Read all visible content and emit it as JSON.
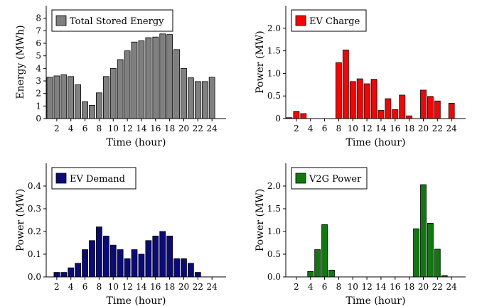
{
  "chart_data": [
    {
      "type": "bar",
      "legend": "Total Stored Energy",
      "color": "#808080",
      "xlabel": "Time (hour)",
      "ylabel": "Energy (MWh)",
      "ylim": [
        0,
        9
      ],
      "yticks": [
        0,
        1,
        2,
        3,
        4,
        5,
        6,
        7,
        8
      ],
      "x": [
        1,
        2,
        3,
        4,
        5,
        6,
        7,
        8,
        9,
        10,
        11,
        12,
        13,
        14,
        15,
        16,
        17,
        18,
        19,
        20,
        21,
        22,
        23,
        24
      ],
      "values": [
        3.3,
        3.4,
        3.5,
        3.35,
        2.7,
        1.35,
        1.05,
        2.05,
        3.35,
        4.0,
        4.7,
        5.4,
        6.1,
        6.2,
        6.45,
        6.5,
        6.75,
        6.7,
        5.5,
        4.0,
        3.25,
        2.95,
        2.95,
        3.3
      ]
    },
    {
      "type": "bar",
      "legend": "EV Charge",
      "color": "#ff0000",
      "xlabel": "Time (hour)",
      "ylabel": "Power (MW)",
      "ylim": [
        0,
        2.5
      ],
      "yticks": [
        "0",
        "0.5",
        "1.0",
        "1.5",
        "2.0"
      ],
      "x": [
        1,
        2,
        3,
        4,
        5,
        6,
        7,
        8,
        9,
        10,
        11,
        12,
        13,
        14,
        15,
        16,
        17,
        18,
        19,
        20,
        21,
        22,
        23,
        24
      ],
      "values": [
        0.02,
        0.16,
        0.11,
        0.0,
        0.0,
        0.0,
        0.0,
        1.24,
        1.52,
        0.82,
        0.88,
        0.77,
        0.87,
        0.18,
        0.44,
        0.2,
        0.52,
        0.06,
        0.0,
        0.63,
        0.49,
        0.39,
        0.0,
        0.34
      ]
    },
    {
      "type": "bar",
      "legend": "EV Demand",
      "color": "#0a0a7d",
      "xlabel": "Time (hour)",
      "ylabel": "Power (MW)",
      "ylim": [
        0,
        0.5
      ],
      "yticks": [
        "0.0",
        "0.1",
        "0.2",
        "0.3",
        "0.4"
      ],
      "x": [
        1,
        2,
        3,
        4,
        5,
        6,
        7,
        8,
        9,
        10,
        11,
        12,
        13,
        14,
        15,
        16,
        17,
        18,
        19,
        20,
        21,
        22,
        23,
        24
      ],
      "values": [
        0.0,
        0.02,
        0.02,
        0.04,
        0.06,
        0.12,
        0.16,
        0.22,
        0.18,
        0.14,
        0.12,
        0.08,
        0.12,
        0.1,
        0.16,
        0.18,
        0.2,
        0.18,
        0.08,
        0.08,
        0.06,
        0.02,
        0.0,
        0.0
      ]
    },
    {
      "type": "bar",
      "legend": "V2G Power",
      "color": "#0e7a0e",
      "xlabel": "Time (hour)",
      "ylabel": "Power (MW)",
      "ylim": [
        0,
        2.5
      ],
      "yticks": [
        "0.0",
        "0.5",
        "1.0",
        "1.5",
        "2.0"
      ],
      "x": [
        1,
        2,
        3,
        4,
        5,
        6,
        7,
        8,
        9,
        10,
        11,
        12,
        13,
        14,
        15,
        16,
        17,
        18,
        19,
        20,
        21,
        22,
        23,
        24
      ],
      "values": [
        0.0,
        0.0,
        0.0,
        0.12,
        0.6,
        1.15,
        0.15,
        0.0,
        0.0,
        0.0,
        0.0,
        0.0,
        0.0,
        0.0,
        0.0,
        0.0,
        0.0,
        0.0,
        1.06,
        2.03,
        1.18,
        0.61,
        0.03,
        0.0
      ]
    }
  ],
  "xticks": [
    "2",
    "4",
    "6",
    "8",
    "10",
    "12",
    "14",
    "16",
    "18",
    "20",
    "22",
    "24"
  ]
}
